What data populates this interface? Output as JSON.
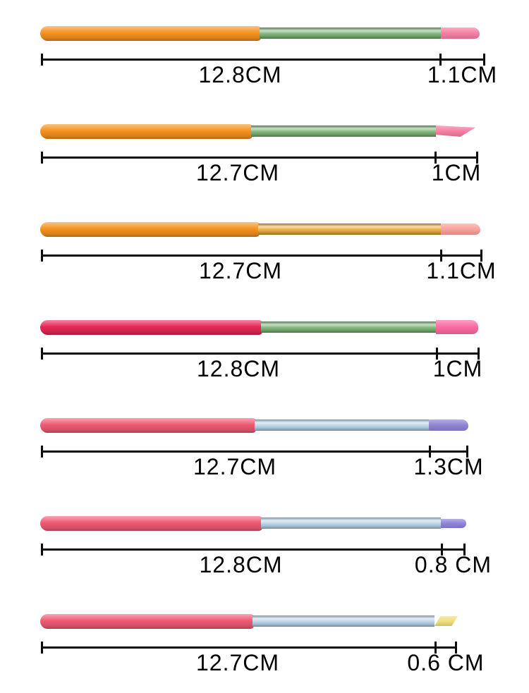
{
  "diagram": {
    "unit": "CM",
    "background": "#ffffff",
    "annotation_color": "#0a0a0a"
  },
  "brushes": [
    {
      "handle_length": "12.8CM",
      "tip_length": "1.1CM",
      "handle_color": "#f6921e",
      "ferrule_color": "#79b274",
      "tip_color": "#f77fa3",
      "tip_shape": "round"
    },
    {
      "handle_length": "12.7CM",
      "tip_length": "1CM",
      "handle_color": "#f6921e",
      "ferrule_color": "#79b274",
      "tip_color": "#f77fa3",
      "tip_shape": "angled"
    },
    {
      "handle_length": "12.7CM",
      "tip_length": "1.1CM",
      "handle_color": "#f6921e",
      "ferrule_color": "#e9a83a",
      "tip_color": "#f8a39b",
      "tip_shape": "round"
    },
    {
      "handle_length": "12.8CM",
      "tip_length": "1CM",
      "handle_color": "#e72757",
      "ferrule_color": "#79b274",
      "tip_color": "#fa6ba1",
      "tip_shape": "flat"
    },
    {
      "handle_length": "12.7CM",
      "tip_length": "1.3CM",
      "handle_color": "#f05a74",
      "ferrule_color": "#b7d3e8",
      "tip_color": "#8f84d6",
      "tip_shape": "round"
    },
    {
      "handle_length": "12.8CM",
      "tip_length": "0.8 CM",
      "handle_color": "#f05a74",
      "ferrule_color": "#b7d3e8",
      "tip_color": "#8f84d6",
      "tip_shape": "small-round"
    },
    {
      "handle_length": "12.7CM",
      "tip_length": "0.6 CM",
      "handle_color": "#f05a74",
      "ferrule_color": "#b7d3e8",
      "tip_color": "#efe07c",
      "tip_shape": "slant"
    }
  ]
}
